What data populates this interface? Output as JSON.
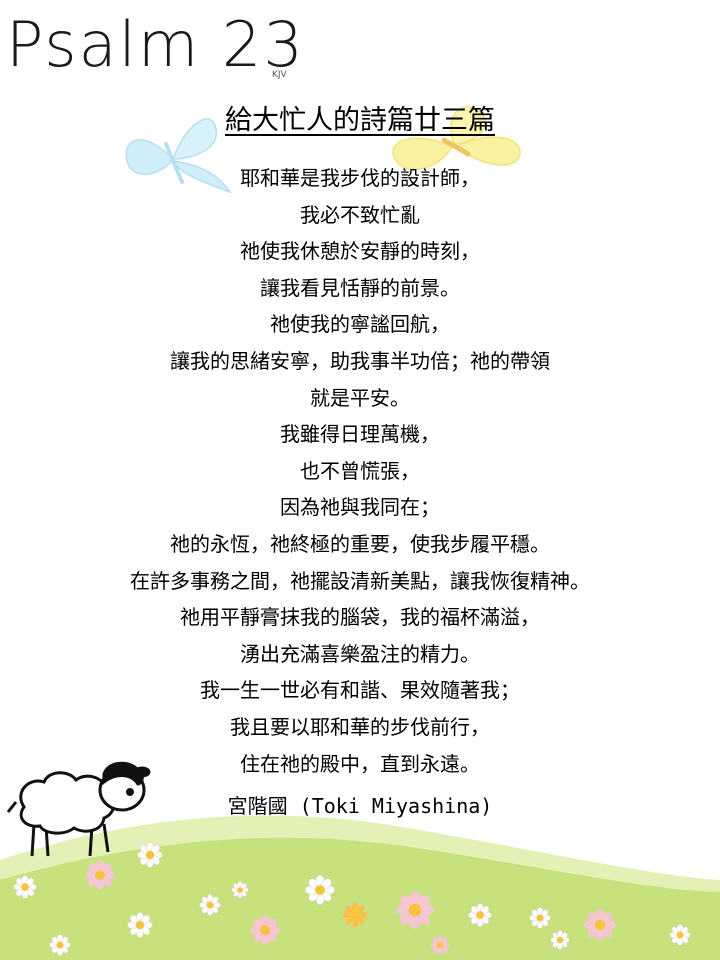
{
  "header": {
    "title": "Psalm 23",
    "subtitle": "KJV"
  },
  "poem": {
    "title": "給大忙人的詩篇廿三篇",
    "lines": [
      "耶和華是我步伐的設計師，",
      "我必不致忙亂",
      "祂使我休憩於安靜的時刻，",
      "讓我看見恬靜的前景。",
      "祂使我的寧謐回航，",
      "讓我的思緒安寧，助我事半功倍；祂的帶領",
      "就是平安。",
      "我雖得日理萬機，",
      "也不曾慌張，",
      "因為祂與我同在；",
      "祂的永恆，祂終極的重要，使我步履平穩。",
      "在許多事務之間，祂擺設清新美點，讓我恢復精神。",
      "祂用平靜膏抹我的腦袋，我的福杯滿溢，",
      "湧出充滿喜樂盈注的精力。",
      "我一生一世必有和諧、果效隨著我；",
      "我且要以耶和華的步伐前行，",
      "住在祂的殿中，直到永遠。"
    ],
    "author": "宮階國 (Toki Miyashina)"
  },
  "decor": {
    "icons": [
      "blue-butterfly-icon",
      "yellow-butterfly-icon",
      "sheep-icon",
      "flower-icon"
    ],
    "colors": {
      "blue_butterfly": "#bfe9f7",
      "yellow_butterfly": "#fbf08a",
      "hill": "#c7e27d",
      "hill_light": "#e4f1b6",
      "flower_white": "#ffffff",
      "flower_pink": "#f7c6d2",
      "flower_center": "#f6c43a"
    }
  }
}
